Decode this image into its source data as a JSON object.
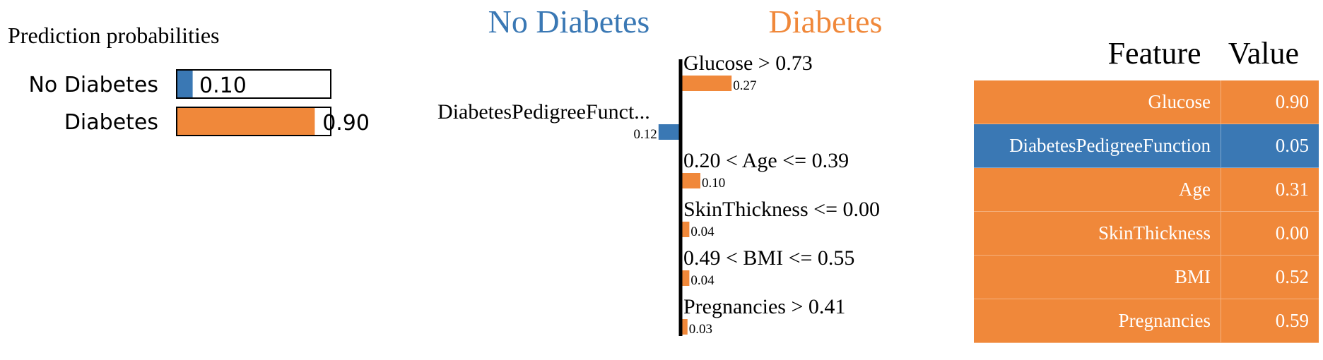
{
  "prediction": {
    "title": "Prediction probabilities",
    "classes": [
      {
        "name": "No Diabetes",
        "prob": 0.1,
        "label": "0.10",
        "color": "#3a78b4"
      },
      {
        "name": "Diabetes",
        "prob": 0.9,
        "label": "0.90",
        "color": "#f0883a"
      }
    ]
  },
  "explanation": {
    "class_negative": "No Diabetes",
    "class_positive": "Diabetes",
    "color_negative": "#3a78b4",
    "color_positive": "#f0883a"
  },
  "chart_data": {
    "type": "bar",
    "orientation": "horizontal",
    "categories": [
      "Glucose > 0.73",
      "DiabetesPedigreeFunct...",
      "0.20 < Age <= 0.39",
      "SkinThickness <= 0.00",
      "0.49 < BMI <= 0.55",
      "Pregnancies > 0.41"
    ],
    "values": [
      0.27,
      -0.12,
      0.1,
      0.04,
      0.04,
      0.03
    ],
    "value_labels": [
      "0.27",
      "0.12",
      "0.10",
      "0.04",
      "0.04",
      "0.03"
    ]
  },
  "table": {
    "headers": [
      "Feature",
      "Value"
    ],
    "rows": [
      {
        "feature": "Glucose",
        "value": "0.90",
        "side": "positive"
      },
      {
        "feature": "DiabetesPedigreeFunction",
        "value": "0.05",
        "side": "negative"
      },
      {
        "feature": "Age",
        "value": "0.31",
        "side": "positive"
      },
      {
        "feature": "SkinThickness",
        "value": "0.00",
        "side": "positive"
      },
      {
        "feature": "BMI",
        "value": "0.52",
        "side": "positive"
      },
      {
        "feature": "Pregnancies",
        "value": "0.59",
        "side": "positive"
      }
    ]
  }
}
